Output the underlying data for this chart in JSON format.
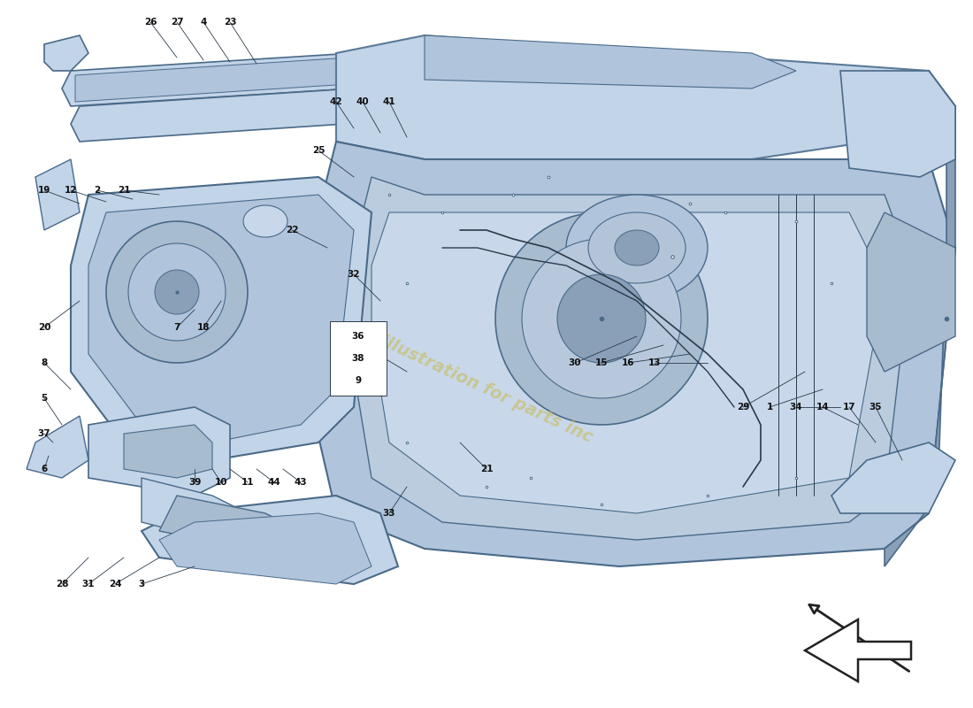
{
  "bg_color": "#ffffff",
  "part_color": "#c2d4e8",
  "part_color2": "#b0c4dc",
  "part_color3": "#a8bcd0",
  "part_color_dark": "#8aa0b8",
  "edge_color": "#4a6a88",
  "edge_color2": "#5a7a98",
  "line_color": "#2a3a4a",
  "label_color": "#111111",
  "watermark_color": "#c8b850",
  "watermark_text": "illustration for parts inc",
  "parts_wm_color": "#d8d8d8",
  "arrow_color": "#222222"
}
